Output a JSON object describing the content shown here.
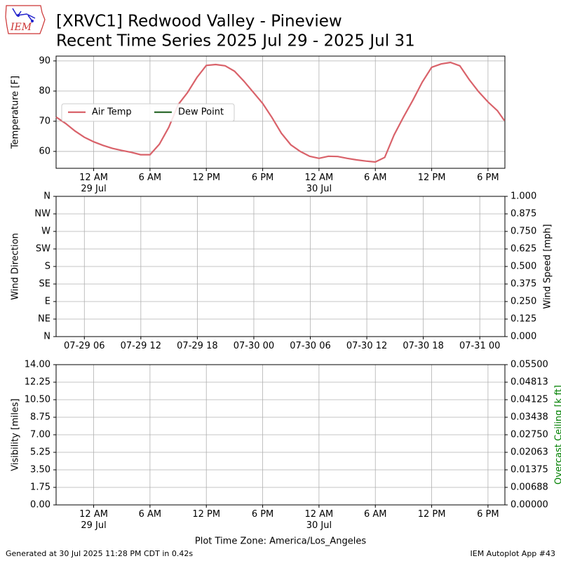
{
  "header": {
    "title": [
      "[XRVC1] Redwood Valley - Pineview",
      "Recent Time Series 2025 Jul 29 - 2025 Jul 31"
    ],
    "logo": "IEM"
  },
  "chart_data": [
    {
      "type": "line",
      "ylabel": "Temperature [F]",
      "grid": true,
      "legend": "center left",
      "xlim": [
        "2025-07-28 20:00",
        "2025-07-30 19:48"
      ],
      "xticks": [
        {
          "value": "2025-07-29 00:00",
          "label": "12 AM\n29 Jul"
        },
        {
          "value": "2025-07-29 06:00",
          "label": "6 AM"
        },
        {
          "value": "2025-07-29 12:00",
          "label": "12 PM"
        },
        {
          "value": "2025-07-29 18:00",
          "label": "6 PM"
        },
        {
          "value": "2025-07-30 00:00",
          "label": "12 AM\n30 Jul"
        },
        {
          "value": "2025-07-30 06:00",
          "label": "6 AM"
        },
        {
          "value": "2025-07-30 12:00",
          "label": "12 PM"
        },
        {
          "value": "2025-07-30 18:00",
          "label": "6 PM"
        }
      ],
      "ylim": [
        54.4,
        91.6
      ],
      "yticks": [
        60,
        70,
        80,
        90
      ],
      "x": [
        "2025-07-28 20:00",
        "2025-07-28 21:00",
        "2025-07-28 22:00",
        "2025-07-28 23:00",
        "2025-07-29 00:00",
        "2025-07-29 01:00",
        "2025-07-29 02:00",
        "2025-07-29 03:00",
        "2025-07-29 04:00",
        "2025-07-29 05:00",
        "2025-07-29 06:00",
        "2025-07-29 07:00",
        "2025-07-29 08:00",
        "2025-07-29 09:00",
        "2025-07-29 10:00",
        "2025-07-29 11:00",
        "2025-07-29 12:00",
        "2025-07-29 13:00",
        "2025-07-29 14:00",
        "2025-07-29 15:00",
        "2025-07-29 16:00",
        "2025-07-29 17:00",
        "2025-07-29 18:00",
        "2025-07-29 19:00",
        "2025-07-29 20:00",
        "2025-07-29 21:00",
        "2025-07-29 22:00",
        "2025-07-29 23:00",
        "2025-07-30 00:00",
        "2025-07-30 01:00",
        "2025-07-30 02:00",
        "2025-07-30 03:00",
        "2025-07-30 04:00",
        "2025-07-30 05:00",
        "2025-07-30 06:00",
        "2025-07-30 07:00",
        "2025-07-30 08:00",
        "2025-07-30 09:00",
        "2025-07-30 10:00",
        "2025-07-30 11:00",
        "2025-07-30 12:00",
        "2025-07-30 13:00",
        "2025-07-30 14:00",
        "2025-07-30 15:00",
        "2025-07-30 16:00",
        "2025-07-30 17:00",
        "2025-07-30 18:00",
        "2025-07-30 19:00",
        "2025-07-30 19:45"
      ],
      "series": [
        {
          "name": "Air Temp",
          "color": "#d9626a",
          "values": [
            71.4,
            69.3,
            66.8,
            64.7,
            63.2,
            62,
            61,
            60.3,
            59.7,
            58.9,
            58.9,
            62.4,
            68,
            75.5,
            79.5,
            84.5,
            88.5,
            88.8,
            88.4,
            86.6,
            83.3,
            79.6,
            75.9,
            71.2,
            66,
            62.2,
            60,
            58.4,
            57.7,
            58.4,
            58.3,
            57.7,
            57.2,
            56.8,
            56.5,
            58,
            65.5,
            71.4,
            77,
            83,
            87.9,
            89,
            89.5,
            88.4,
            83.8,
            79.8,
            76.4,
            73.5,
            70.2
          ]
        },
        {
          "name": "Dew Point",
          "color": "#2f6b2f",
          "values": [
            null,
            null,
            null,
            null,
            null,
            null,
            null,
            null,
            null,
            null,
            null,
            null,
            null,
            null,
            null,
            null,
            null,
            null,
            null,
            null,
            null,
            null,
            null,
            null,
            null,
            null,
            null,
            null,
            null,
            null,
            null,
            null,
            null,
            null,
            null,
            null,
            null,
            null,
            null,
            null,
            null,
            null,
            null,
            null,
            null,
            null,
            null,
            null,
            null
          ]
        }
      ]
    },
    {
      "type": "line",
      "ylabel": "Wind Direction",
      "y2label": "Wind Speed [mph]",
      "grid": true,
      "xlim": [
        "2025-07-29 03:00",
        "2025-07-31 02:40"
      ],
      "xticks": [
        {
          "value": "2025-07-29 06:00",
          "label": "07-29 06"
        },
        {
          "value": "2025-07-29 12:00",
          "label": "07-29 12"
        },
        {
          "value": "2025-07-29 18:00",
          "label": "07-29 18"
        },
        {
          "value": "2025-07-30 00:00",
          "label": "07-30 00"
        },
        {
          "value": "2025-07-30 06:00",
          "label": "07-30 06"
        },
        {
          "value": "2025-07-30 12:00",
          "label": "07-30 12"
        },
        {
          "value": "2025-07-30 18:00",
          "label": "07-30 18"
        },
        {
          "value": "2025-07-31 00:00",
          "label": "07-31 00"
        }
      ],
      "ylim": [
        0,
        360
      ],
      "yticks": [
        {
          "value": 0,
          "label": "N"
        },
        {
          "value": 45,
          "label": "NE"
        },
        {
          "value": 90,
          "label": "E"
        },
        {
          "value": 135,
          "label": "SE"
        },
        {
          "value": 180,
          "label": "S"
        },
        {
          "value": 225,
          "label": "SW"
        },
        {
          "value": 270,
          "label": "W"
        },
        {
          "value": 315,
          "label": "NW"
        },
        {
          "value": 360,
          "label": "N"
        }
      ],
      "y2lim": [
        0,
        1
      ],
      "y2ticks": [
        {
          "value": 0,
          "label": "0.000"
        },
        {
          "value": 0.125,
          "label": "0.125"
        },
        {
          "value": 0.25,
          "label": "0.250"
        },
        {
          "value": 0.375,
          "label": "0.375"
        },
        {
          "value": 0.5,
          "label": "0.500"
        },
        {
          "value": 0.625,
          "label": "0.625"
        },
        {
          "value": 0.75,
          "label": "0.750"
        },
        {
          "value": 0.875,
          "label": "0.875"
        },
        {
          "value": 1,
          "label": "1.000"
        }
      ],
      "series": []
    },
    {
      "type": "line",
      "ylabel": "Visibility [miles]",
      "y2label": "Overcast Ceiling [k ft]",
      "y2label_color": "#008000",
      "xlabel": "Plot Time Zone: America/Los_Angeles",
      "grid": true,
      "xlim": [
        "2025-07-28 20:00",
        "2025-07-30 19:48"
      ],
      "xticks": [
        {
          "value": "2025-07-29 00:00",
          "label": "12 AM\n29 Jul"
        },
        {
          "value": "2025-07-29 06:00",
          "label": "6 AM"
        },
        {
          "value": "2025-07-29 12:00",
          "label": "12 PM"
        },
        {
          "value": "2025-07-29 18:00",
          "label": "6 PM"
        },
        {
          "value": "2025-07-30 00:00",
          "label": "12 AM\n30 Jul"
        },
        {
          "value": "2025-07-30 06:00",
          "label": "6 AM"
        },
        {
          "value": "2025-07-30 12:00",
          "label": "12 PM"
        },
        {
          "value": "2025-07-30 18:00",
          "label": "6 PM"
        }
      ],
      "ylim": [
        0,
        14
      ],
      "yticks": [
        {
          "value": 0,
          "label": "0.00"
        },
        {
          "value": 1.75,
          "label": "1.75"
        },
        {
          "value": 3.5,
          "label": "3.50"
        },
        {
          "value": 5.25,
          "label": "5.25"
        },
        {
          "value": 7,
          "label": "7.00"
        },
        {
          "value": 8.75,
          "label": "8.75"
        },
        {
          "value": 10.5,
          "label": "10.50"
        },
        {
          "value": 12.25,
          "label": "12.25"
        },
        {
          "value": 14,
          "label": "14.00"
        }
      ],
      "y2lim": [
        0,
        0.055
      ],
      "y2ticks": [
        {
          "value": 0,
          "label": "0.00000"
        },
        {
          "value": 0.006875,
          "label": "0.00688"
        },
        {
          "value": 0.01375,
          "label": "0.01375"
        },
        {
          "value": 0.020625,
          "label": "0.02063"
        },
        {
          "value": 0.0275,
          "label": "0.02750"
        },
        {
          "value": 0.034375,
          "label": "0.03438"
        },
        {
          "value": 0.04125,
          "label": "0.04125"
        },
        {
          "value": 0.048125,
          "label": "0.04813"
        },
        {
          "value": 0.055,
          "label": "0.05500"
        }
      ],
      "series": []
    }
  ],
  "footer": {
    "left": "Generated at 30 Jul 2025 11:28 PM CDT in 0.42s",
    "right": "IEM Autoplot App #43"
  }
}
